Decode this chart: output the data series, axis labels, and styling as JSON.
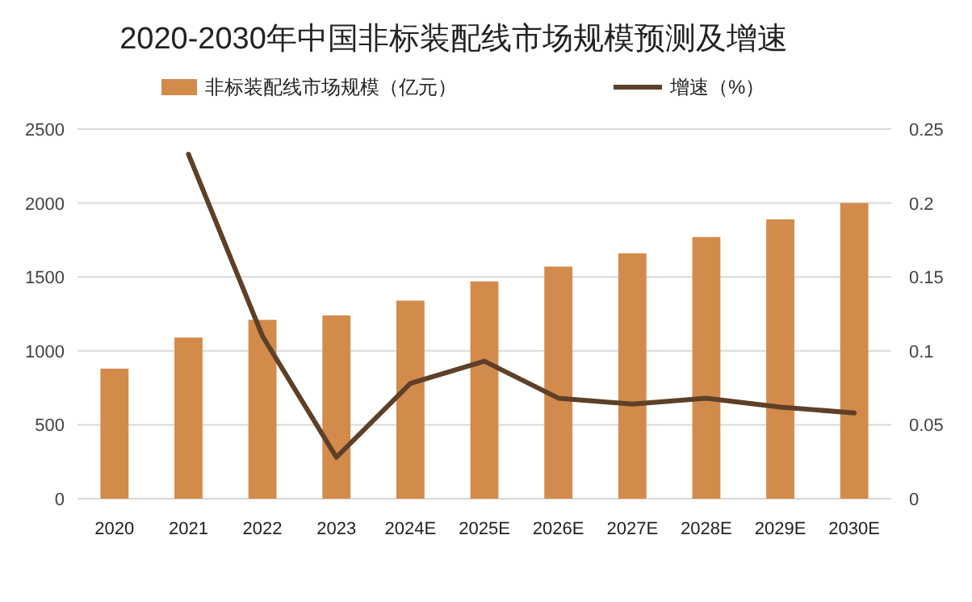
{
  "chart_data": {
    "type": "bar",
    "title": "2020-2030年中国非标装配线市场规模预测及增速",
    "categories": [
      "2020",
      "2021",
      "2022",
      "2023",
      "2024E",
      "2025E",
      "2026E",
      "2027E",
      "2028E",
      "2029E",
      "2030E"
    ],
    "series": [
      {
        "name": "非标装配线市场规模（亿元）",
        "color": "#d38b4c",
        "values": [
          880,
          1090,
          1210,
          1240,
          1340,
          1470,
          1570,
          1660,
          1770,
          1890,
          2000
        ]
      },
      {
        "name": "增速（%）",
        "type": "line",
        "axis": "y2",
        "color": "#5e4028",
        "values": [
          null,
          0.233,
          0.11,
          0.028,
          0.078,
          0.093,
          0.068,
          0.064,
          0.068,
          0.062,
          0.058
        ]
      }
    ],
    "ylim": [
      0,
      2500
    ],
    "yticks": [
      0,
      500,
      1000,
      1500,
      2000,
      2500
    ],
    "y2lim": [
      0,
      0.25
    ],
    "y2ticks": [
      0,
      0.05,
      0.1,
      0.15,
      0.2,
      0.25
    ],
    "grid": "y",
    "legend": "top"
  }
}
